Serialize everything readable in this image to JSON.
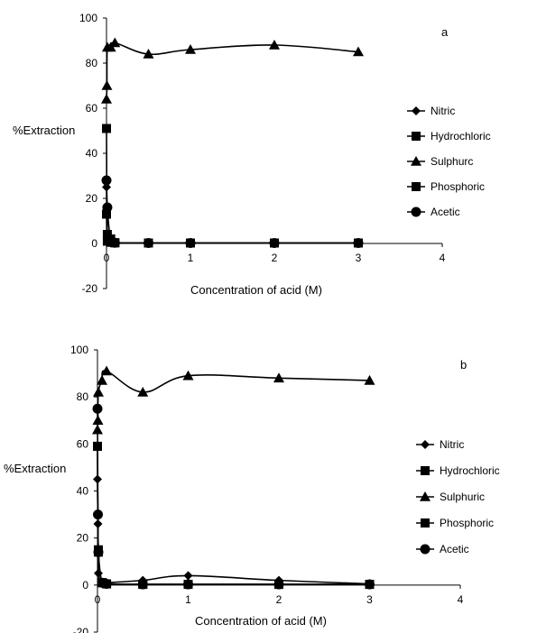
{
  "chart_data": [
    {
      "type": "line",
      "panel_label": "a",
      "xlabel": "Concentration of acid (M)",
      "ylabel": "%Extraction",
      "xlim": [
        0,
        4
      ],
      "ylim": [
        -20,
        100
      ],
      "x_ticks": [
        "0",
        "1",
        "2",
        "3",
        "4"
      ],
      "y_ticks": [
        "-20",
        "0",
        "20",
        "40",
        "60",
        "80",
        "100"
      ],
      "grid": false,
      "legend_position": "right",
      "series": [
        {
          "name": "Nitric",
          "marker": "diamond",
          "x": [
            0,
            0.01,
            0.05,
            0.1,
            0.5,
            1,
            2,
            3
          ],
          "y": [
            25,
            2,
            0.5,
            0.3,
            0.2,
            0.2,
            0.2,
            0.2
          ]
        },
        {
          "name": "Hydrochloric",
          "marker": "square",
          "x": [
            0,
            0.01,
            0.05,
            0.1,
            0.5,
            1,
            2,
            3
          ],
          "y": [
            51,
            4,
            2,
            0.3,
            0.2,
            0.2,
            0.2,
            0.2
          ]
        },
        {
          "name": "Sulphurc",
          "marker": "triangle",
          "x": [
            0,
            0.005,
            0.01,
            0.05,
            0.1,
            0.5,
            1,
            2,
            3
          ],
          "y": [
            64,
            70,
            87,
            87,
            89,
            84,
            86,
            88,
            85
          ]
        },
        {
          "name": "Phosphoric",
          "marker": "square",
          "x": [
            0,
            0.01,
            0.05,
            0.1,
            0.5,
            1,
            2,
            3
          ],
          "y": [
            13,
            1,
            0.5,
            0.3,
            0.2,
            0.2,
            0.2,
            0.2
          ]
        },
        {
          "name": "Acetic",
          "marker": "circle",
          "x": [
            0,
            0.01,
            0.05,
            0.1,
            0.5,
            1,
            2,
            3
          ],
          "y": [
            28,
            16,
            1,
            0.3,
            0.2,
            0.2,
            0.2,
            0.2
          ]
        }
      ]
    },
    {
      "type": "line",
      "panel_label": "b",
      "xlabel": "Concentration of acid (M)",
      "ylabel": "%Extraction",
      "xlim": [
        0,
        4
      ],
      "ylim": [
        -20,
        100
      ],
      "x_ticks": [
        "0",
        "1",
        "2",
        "3",
        "4"
      ],
      "y_ticks": [
        "-20",
        "0",
        "20",
        "40",
        "60",
        "80",
        "100"
      ],
      "grid": false,
      "legend_position": "right",
      "series": [
        {
          "name": "Nitric",
          "marker": "diamond",
          "x": [
            0,
            0.005,
            0.01,
            0.05,
            0.1,
            0.5,
            1,
            2,
            3
          ],
          "y": [
            45,
            26,
            5,
            1,
            1,
            2,
            4,
            2,
            0.5
          ]
        },
        {
          "name": "Hydrochloric",
          "marker": "square",
          "x": [
            0,
            0.01,
            0.05,
            0.1,
            0.5,
            1,
            2,
            3
          ],
          "y": [
            59,
            15,
            1,
            0.5,
            0.3,
            0.3,
            0.3,
            0.3
          ]
        },
        {
          "name": "Sulphuric",
          "marker": "triangle",
          "x": [
            0,
            0.005,
            0.01,
            0.05,
            0.1,
            0.5,
            1,
            2,
            3
          ],
          "y": [
            66,
            70,
            82,
            87,
            91,
            82,
            89,
            88,
            87
          ]
        },
        {
          "name": "Phosphoric",
          "marker": "square",
          "x": [
            0,
            0.01,
            0.05,
            0.1,
            0.5,
            1,
            2,
            3
          ],
          "y": [
            59,
            14,
            1,
            0.5,
            0.3,
            0.3,
            0.3,
            0.3
          ]
        },
        {
          "name": "Acetic",
          "marker": "circle",
          "x": [
            0,
            0.005,
            0.01,
            0.05,
            0.1,
            0.5,
            1,
            2,
            3
          ],
          "y": [
            75,
            30,
            14,
            1,
            0.5,
            0.3,
            0.3,
            0.3,
            0.3
          ]
        }
      ]
    }
  ]
}
